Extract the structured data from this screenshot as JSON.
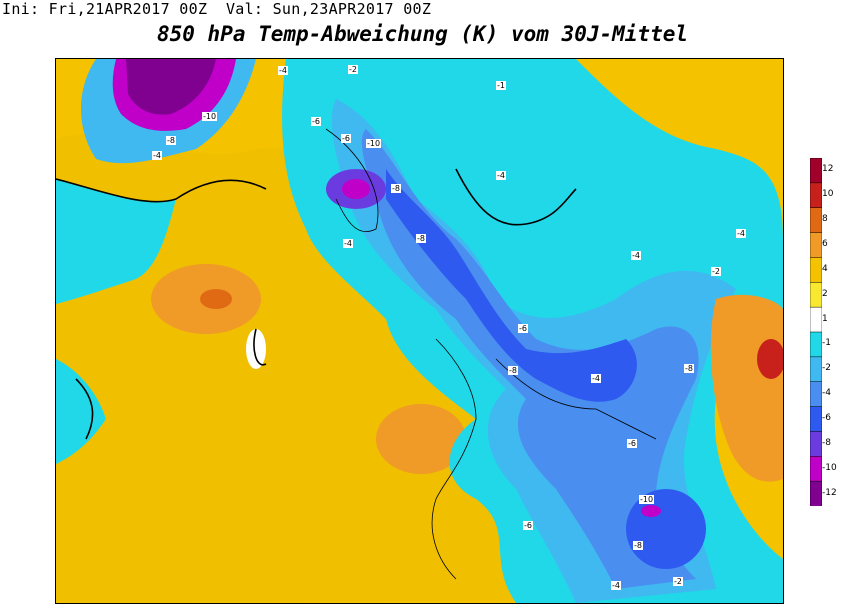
{
  "header": {
    "init_valid": "Ini: Fri,21APR2017 00Z  Val: Sun,23APR2017 00Z",
    "title": "850 hPa Temp-Abweichung (K) vom 30J-Mittel"
  },
  "legend": {
    "ticks": [
      "12",
      "10",
      "8",
      "6",
      "4",
      "2",
      "1",
      "-1",
      "-2",
      "-4",
      "-6",
      "-8",
      "-10",
      "-12"
    ],
    "colors": [
      "#a0002a",
      "#c8201a",
      "#e06a14",
      "#f09a28",
      "#f5c200",
      "#f8e830",
      "#ffffff",
      "#20d8e8",
      "#40b8f0",
      "#4a8ef0",
      "#2e5af0",
      "#6a3ce0",
      "#c000c8",
      "#800090"
    ]
  },
  "map_labels": [
    {
      "text": "-4",
      "key": "a"
    },
    {
      "text": "-2",
      "key": "b"
    },
    {
      "text": "-1",
      "key": "c"
    },
    {
      "text": "-10",
      "key": "d"
    },
    {
      "text": "-6",
      "key": "e"
    },
    {
      "text": "-8",
      "key": "f"
    },
    {
      "text": "-4",
      "key": "g"
    },
    {
      "text": "-6",
      "key": "h"
    },
    {
      "text": "-10",
      "key": "i"
    },
    {
      "text": "-8",
      "key": "j"
    },
    {
      "text": "-8",
      "key": "k"
    },
    {
      "text": "-4",
      "key": "l"
    },
    {
      "text": "-6",
      "key": "m"
    },
    {
      "text": "-8",
      "key": "n"
    },
    {
      "text": "-4",
      "key": "o"
    },
    {
      "text": "-2",
      "key": "p"
    },
    {
      "text": "-4",
      "key": "q"
    },
    {
      "text": "-10",
      "key": "r"
    },
    {
      "text": "-8",
      "key": "s"
    },
    {
      "text": "-6",
      "key": "t"
    },
    {
      "text": "-4",
      "key": "u"
    },
    {
      "text": "-2",
      "key": "v"
    },
    {
      "text": "-4",
      "key": "w"
    },
    {
      "text": "-6",
      "key": "x"
    },
    {
      "text": "-8",
      "key": "y"
    },
    {
      "text": "-4",
      "key": "z"
    }
  ]
}
